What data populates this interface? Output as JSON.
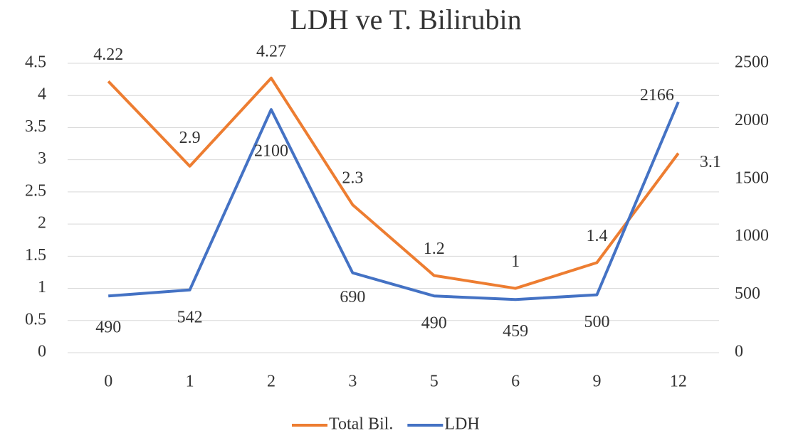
{
  "chart_data": {
    "type": "line",
    "title": "LDH ve T. Bilirubin",
    "categories": [
      "0",
      "1",
      "2",
      "3",
      "5",
      "6",
      "9",
      "12"
    ],
    "series": [
      {
        "name": "Total Bil.",
        "color": "#ed7d31",
        "values": [
          4.22,
          2.9,
          4.27,
          2.3,
          1.2,
          1,
          1.4,
          3.1
        ]
      },
      {
        "name": "LDH",
        "color": "#4472c4",
        "axis": "y2",
        "values": [
          490,
          542,
          2100,
          690,
          490,
          459,
          500,
          2166
        ]
      }
    ],
    "ylim": [
      0,
      4.5
    ],
    "yticks": [
      0,
      0.5,
      1,
      1.5,
      2,
      2.5,
      3,
      3.5,
      4,
      4.5
    ],
    "y2lim": [
      0,
      2500
    ],
    "y2ticks": [
      0,
      500,
      1000,
      1500,
      2000,
      2500
    ],
    "grid": true,
    "legend": "bottom"
  }
}
